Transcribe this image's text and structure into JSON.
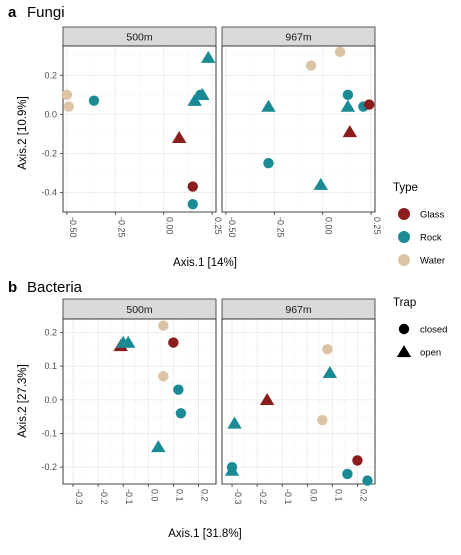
{
  "colors": {
    "Glass": "#8c1d1d",
    "Rock": "#1a8a94",
    "Water": "#dcc3a6"
  },
  "legend_type": {
    "title": "Type",
    "entries": [
      "Glass",
      "Rock",
      "Water"
    ]
  },
  "legend_trap": {
    "title": "Trap",
    "entries": [
      "closed",
      "open"
    ]
  },
  "chart_data": [
    {
      "type": "scatter",
      "label": "a",
      "title": "Fungi",
      "xlabel": "Axis.1    [14%]",
      "ylabel": "Axis.2    [10.9%]",
      "xlim": [
        -0.52,
        0.27
      ],
      "ylim": [
        -0.5,
        0.35
      ],
      "x_ticks": [
        -0.5,
        -0.25,
        0.0,
        0.25
      ],
      "x_tick_labels": [
        "-0.50",
        "-0.25",
        "0.00",
        "0.25"
      ],
      "y_ticks": [
        -0.4,
        -0.2,
        0.0,
        0.2
      ],
      "y_tick_labels": [
        "-0.4",
        "-0.2",
        "0.0",
        "0.2"
      ],
      "x_tick_rotation": 90,
      "facets": [
        {
          "name": "500m",
          "points": [
            {
              "x": -0.5,
              "y": 0.1,
              "type": "Water",
              "trap": "closed"
            },
            {
              "x": -0.49,
              "y": 0.04,
              "type": "Water",
              "trap": "closed"
            },
            {
              "x": -0.36,
              "y": 0.07,
              "type": "Rock",
              "trap": "closed"
            },
            {
              "x": 0.08,
              "y": -0.12,
              "type": "Glass",
              "trap": "open"
            },
            {
              "x": 0.15,
              "y": -0.37,
              "type": "Glass",
              "trap": "closed"
            },
            {
              "x": 0.15,
              "y": -0.46,
              "type": "Rock",
              "trap": "closed"
            },
            {
              "x": 0.16,
              "y": 0.07,
              "type": "Rock",
              "trap": "open"
            },
            {
              "x": 0.19,
              "y": 0.1,
              "type": "Rock",
              "trap": "closed"
            },
            {
              "x": 0.2,
              "y": 0.1,
              "type": "Rock",
              "trap": "open"
            },
            {
              "x": 0.23,
              "y": 0.29,
              "type": "Rock",
              "trap": "open"
            }
          ]
        },
        {
          "name": "967m",
          "points": [
            {
              "x": -0.06,
              "y": 0.25,
              "type": "Water",
              "trap": "closed"
            },
            {
              "x": 0.09,
              "y": 0.32,
              "type": "Water",
              "trap": "closed"
            },
            {
              "x": 0.13,
              "y": 0.1,
              "type": "Rock",
              "trap": "closed"
            },
            {
              "x": 0.13,
              "y": 0.04,
              "type": "Rock",
              "trap": "open"
            },
            {
              "x": 0.14,
              "y": -0.09,
              "type": "Glass",
              "trap": "open"
            },
            {
              "x": 0.21,
              "y": 0.04,
              "type": "Rock",
              "trap": "closed"
            },
            {
              "x": 0.24,
              "y": 0.05,
              "type": "Glass",
              "trap": "closed"
            },
            {
              "x": -0.28,
              "y": 0.04,
              "type": "Rock",
              "trap": "open"
            },
            {
              "x": -0.28,
              "y": -0.25,
              "type": "Rock",
              "trap": "closed"
            },
            {
              "x": -0.01,
              "y": -0.36,
              "type": "Rock",
              "trap": "open"
            }
          ]
        }
      ]
    },
    {
      "type": "scatter",
      "label": "b",
      "title": "Bacteria",
      "xlabel": "Axis.1    [31.8%]",
      "ylabel": "Axis.2    [27.3%]",
      "xlim": [
        -0.34,
        0.27
      ],
      "ylim": [
        -0.25,
        0.24
      ],
      "x_ticks": [
        -0.3,
        -0.2,
        -0.1,
        0.0,
        0.1,
        0.2
      ],
      "x_tick_labels": [
        "-0.3",
        "-0.2",
        "-0.1",
        "0.0",
        "0.1",
        "0.2"
      ],
      "y_ticks": [
        -0.2,
        -0.1,
        0.0,
        0.1,
        0.2
      ],
      "y_tick_labels": [
        "-0.2",
        "-0.1",
        "0.0",
        "0.1",
        "0.2"
      ],
      "x_tick_rotation": 90,
      "facets": [
        {
          "name": "500m",
          "points": [
            {
              "x": -0.11,
              "y": 0.16,
              "type": "Glass",
              "trap": "open"
            },
            {
              "x": -0.1,
              "y": 0.17,
              "type": "Rock",
              "trap": "open"
            },
            {
              "x": -0.08,
              "y": 0.17,
              "type": "Rock",
              "trap": "open"
            },
            {
              "x": 0.06,
              "y": 0.22,
              "type": "Water",
              "trap": "closed"
            },
            {
              "x": 0.1,
              "y": 0.17,
              "type": "Glass",
              "trap": "closed"
            },
            {
              "x": 0.06,
              "y": 0.07,
              "type": "Water",
              "trap": "closed"
            },
            {
              "x": 0.12,
              "y": 0.03,
              "type": "Rock",
              "trap": "closed"
            },
            {
              "x": 0.13,
              "y": -0.04,
              "type": "Rock",
              "trap": "closed"
            },
            {
              "x": 0.04,
              "y": -0.14,
              "type": "Rock",
              "trap": "open"
            }
          ]
        },
        {
          "name": "967m",
          "points": [
            {
              "x": -0.3,
              "y": -0.2,
              "type": "Rock",
              "trap": "closed"
            },
            {
              "x": -0.3,
              "y": -0.21,
              "type": "Rock",
              "trap": "open"
            },
            {
              "x": -0.29,
              "y": -0.07,
              "type": "Rock",
              "trap": "open"
            },
            {
              "x": -0.16,
              "y": 0.0,
              "type": "Glass",
              "trap": "open"
            },
            {
              "x": 0.08,
              "y": 0.15,
              "type": "Water",
              "trap": "closed"
            },
            {
              "x": 0.09,
              "y": 0.08,
              "type": "Rock",
              "trap": "open"
            },
            {
              "x": 0.06,
              "y": -0.06,
              "type": "Water",
              "trap": "closed"
            },
            {
              "x": 0.2,
              "y": -0.18,
              "type": "Glass",
              "trap": "closed"
            },
            {
              "x": 0.16,
              "y": -0.22,
              "type": "Rock",
              "trap": "closed"
            },
            {
              "x": 0.24,
              "y": -0.24,
              "type": "Rock",
              "trap": "closed"
            }
          ]
        }
      ]
    }
  ]
}
